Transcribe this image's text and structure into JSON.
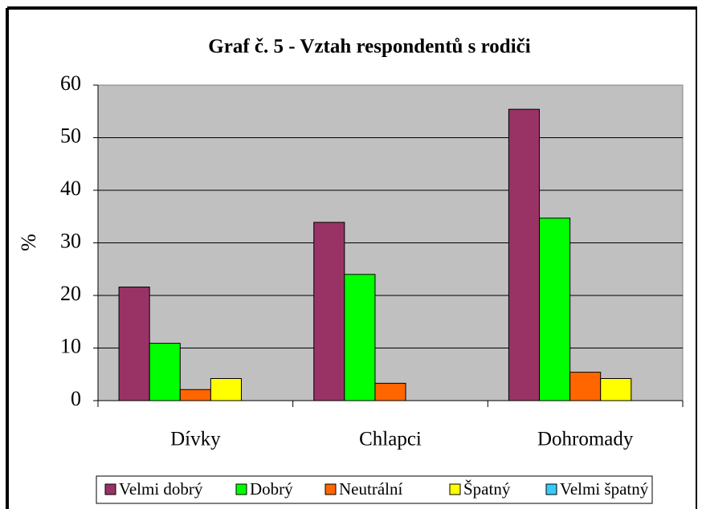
{
  "chart_data": {
    "type": "bar",
    "title": "Graf č. 5 - Vztah respondentů s rodiči",
    "y_label": "%",
    "categories": [
      "Dívky",
      "Chlapci",
      "Dohromady"
    ],
    "series": [
      {
        "name": "Velmi dobrý",
        "color": "#993366",
        "values": [
          21.6,
          33.9,
          55.4
        ]
      },
      {
        "name": "Dobrý",
        "color": "#00ff00",
        "values": [
          10.9,
          24.0,
          34.7
        ]
      },
      {
        "name": "Neutrální",
        "color": "#ff6600",
        "values": [
          2.1,
          3.3,
          5.4
        ]
      },
      {
        "name": "Špatný",
        "color": "#ffff00",
        "values": [
          4.2,
          0,
          4.2
        ]
      },
      {
        "name": "Velmi špatný",
        "color": "#33ccff",
        "values": [
          0,
          0,
          0
        ]
      }
    ],
    "ylim": [
      0,
      60
    ],
    "yticks": [
      0,
      10,
      20,
      30,
      40,
      50,
      60
    ],
    "grid": true,
    "legend": "bottom"
  }
}
